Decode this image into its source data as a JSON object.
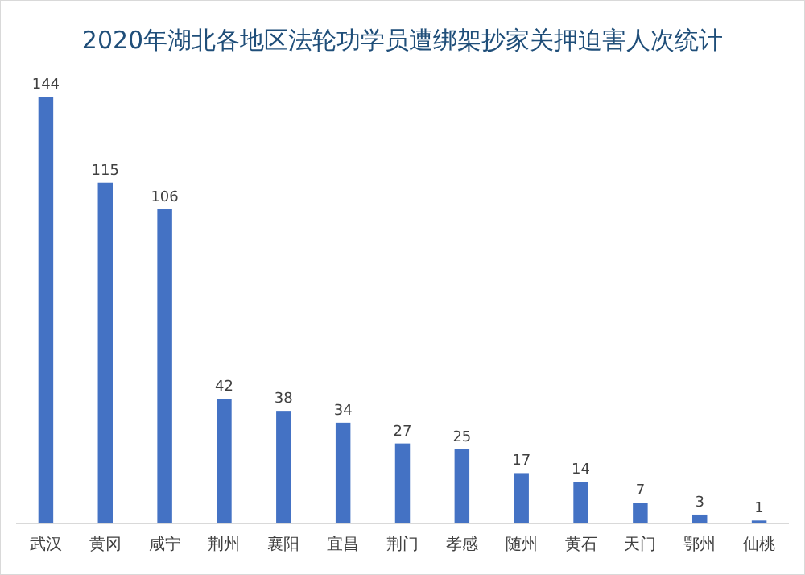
{
  "chart_data": {
    "type": "bar",
    "title": "2020年湖北各地区法轮功学员遭绑架抄家关押迫害人次统计",
    "categories": [
      "武汉",
      "黄冈",
      "咸宁",
      "荆州",
      "襄阳",
      "宜昌",
      "荆门",
      "孝感",
      "随州",
      "黄石",
      "天门",
      "鄂州",
      "仙桃"
    ],
    "values": [
      144,
      115,
      106,
      42,
      38,
      34,
      27,
      25,
      17,
      14,
      7,
      3,
      1
    ],
    "color": "#4472c4",
    "data_labels": true
  }
}
